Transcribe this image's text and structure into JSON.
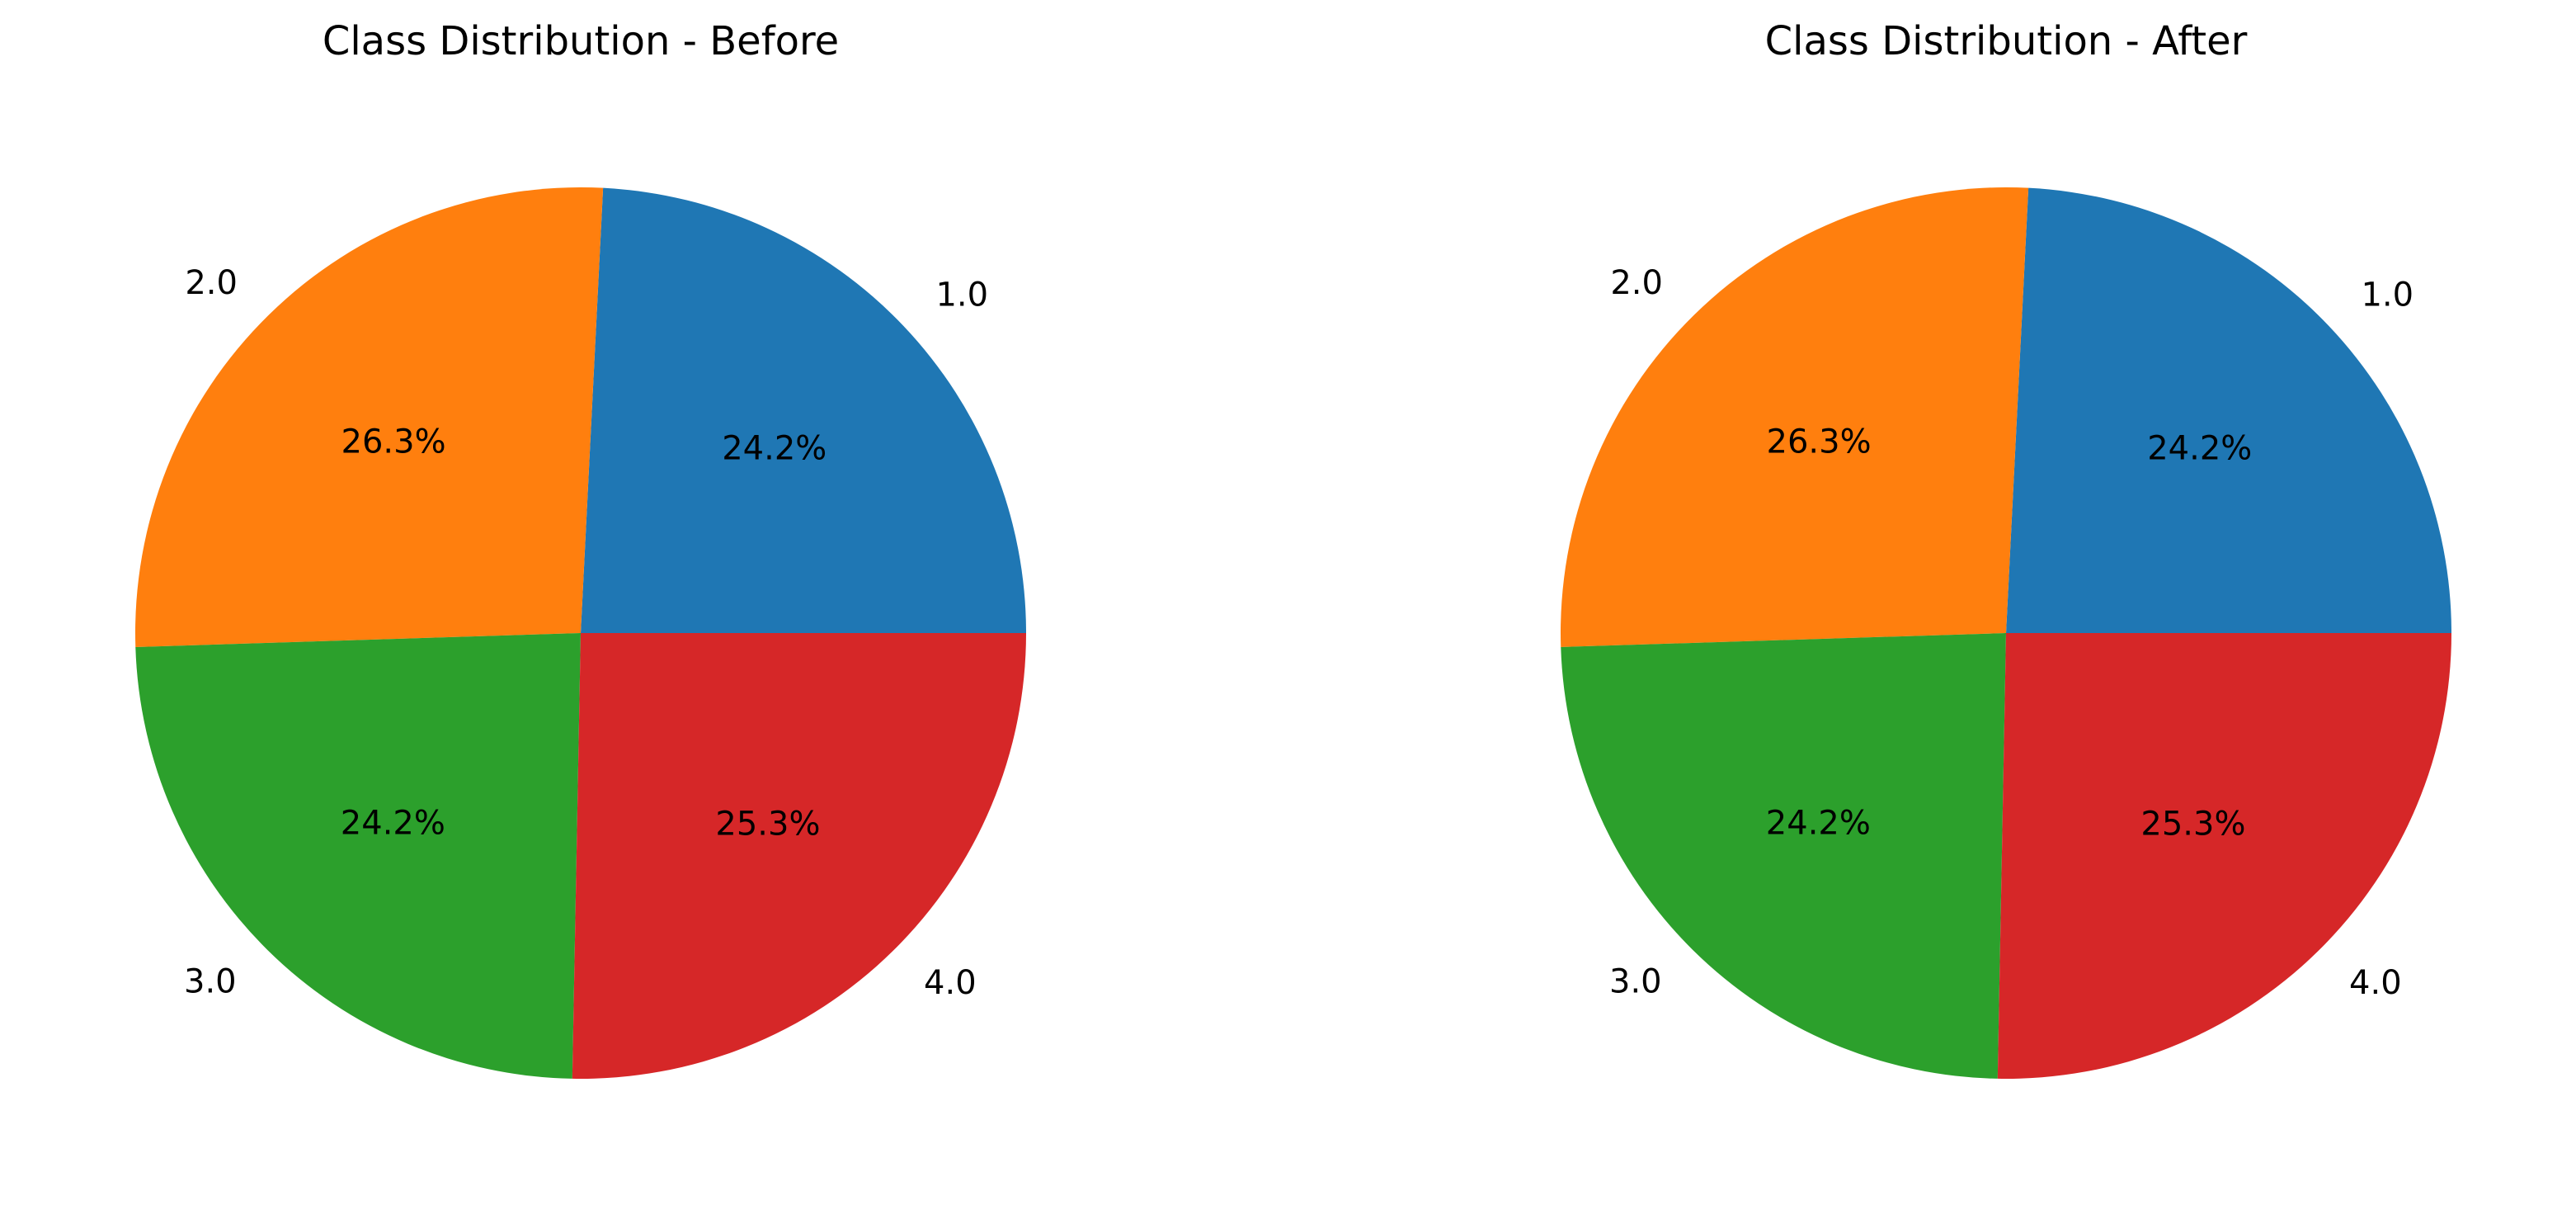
{
  "chart_data": [
    {
      "type": "pie",
      "title": "Class Distribution - Before",
      "categories": [
        "1.0",
        "2.0",
        "3.0",
        "4.0"
      ],
      "values": [
        24.2,
        26.3,
        24.2,
        25.3
      ],
      "value_labels": [
        "24.2%",
        "26.3%",
        "24.2%",
        "25.3%"
      ],
      "colors": [
        "#1f77b4",
        "#ff7f0e",
        "#2ca02c",
        "#d62728"
      ],
      "start_angle": 0,
      "direction": "counterclockwise"
    },
    {
      "type": "pie",
      "title": "Class Distribution - After",
      "categories": [
        "1.0",
        "2.0",
        "3.0",
        "4.0"
      ],
      "values": [
        24.2,
        26.3,
        24.2,
        25.3
      ],
      "value_labels": [
        "24.2%",
        "26.3%",
        "24.2%",
        "25.3%"
      ],
      "colors": [
        "#1f77b4",
        "#ff7f0e",
        "#2ca02c",
        "#d62728"
      ],
      "start_angle": 0,
      "direction": "counterclockwise"
    }
  ]
}
